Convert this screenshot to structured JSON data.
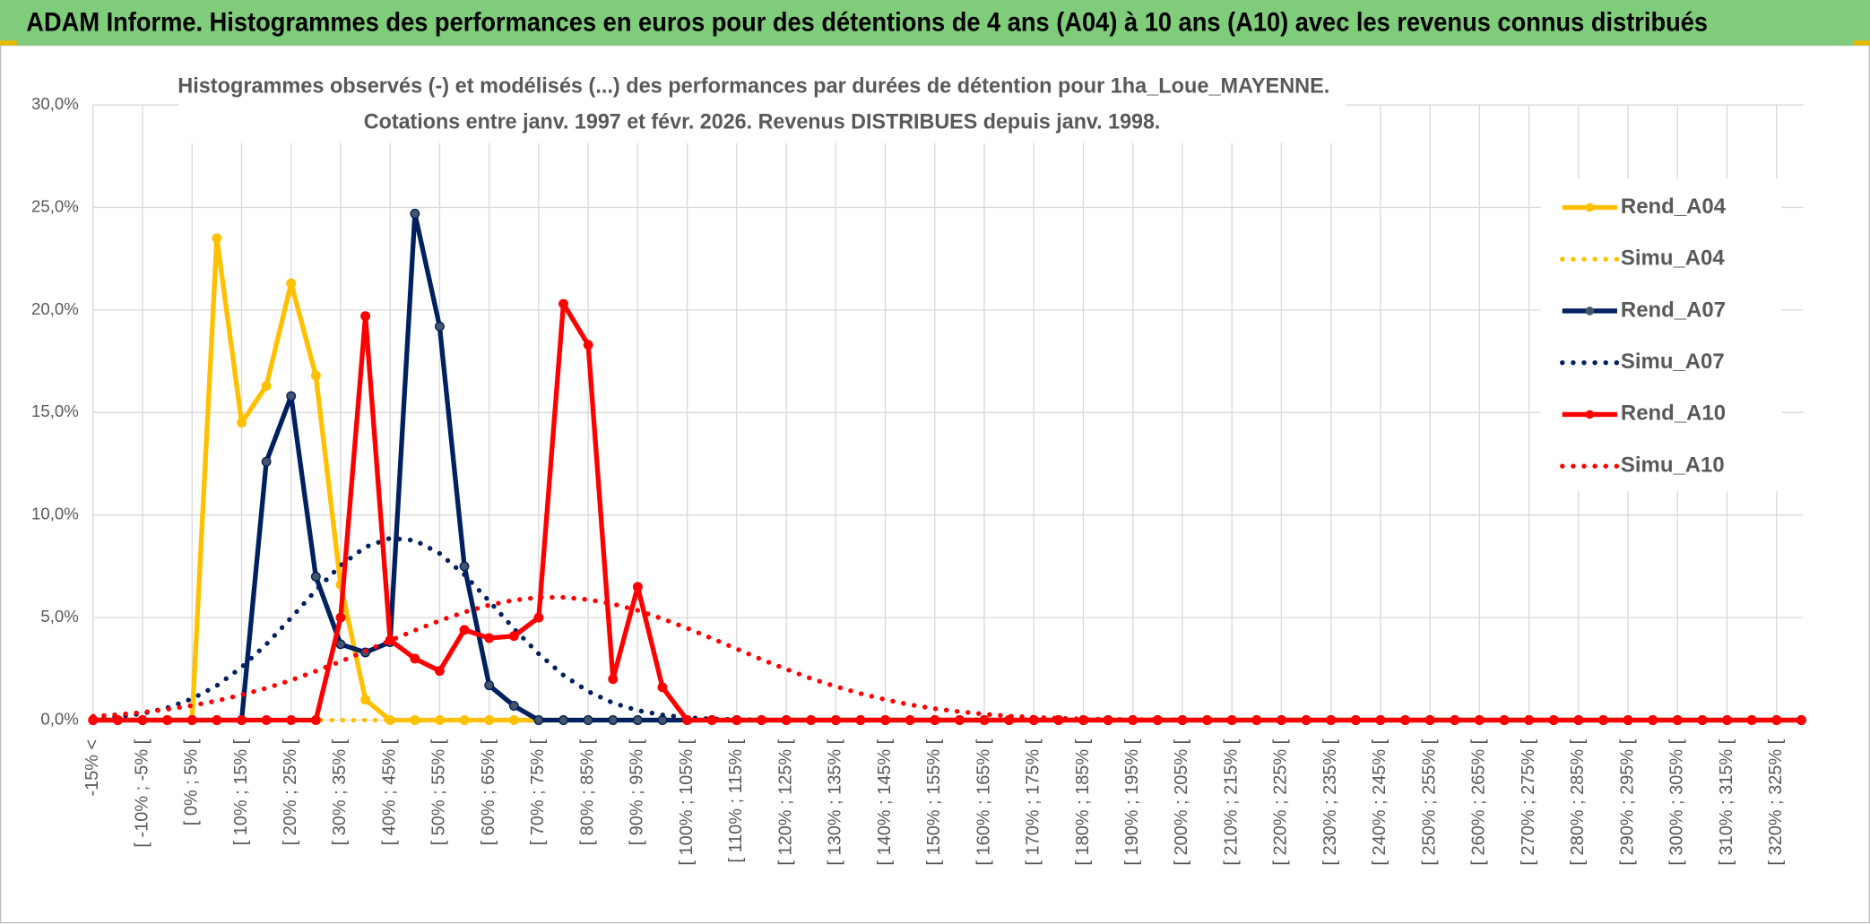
{
  "header": {
    "title": "ADAM Informe. Histogrammes des performances en euros pour des détentions de 4 ans (A04) à 10 ans (A10) avec les revenus connus distribués"
  },
  "chart_data": {
    "type": "line",
    "title": "Histogrammes observés (-) et modélisés (...) des performances par durées de détention pour 1ha_Loue_MAYENNE.",
    "subtitle": "Cotations entre janv. 1997 et févr. 2026. Revenus DISTRIBUES depuis janv. 1998.",
    "categories": [
      "-15% <",
      null,
      "[ -10% ; -5% [",
      null,
      "[ 0% ; 5% [",
      null,
      "[ 10% ; 15% [",
      null,
      "[ 20% ; 25% [",
      null,
      "[ 30% ; 35% [",
      null,
      "[ 40% ; 45% [",
      null,
      "[ 50% ; 55% [",
      null,
      "[ 60% ; 65% [",
      null,
      "[ 70% ; 75% [",
      null,
      "[ 80% ; 85% [",
      null,
      "[ 90% ; 95% [",
      null,
      "[ 100% ; 105% [",
      null,
      "[ 110% ; 115% [",
      null,
      "[ 120% ; 125% [",
      null,
      "[ 130% ; 135% [",
      null,
      "[ 140% ; 145% [",
      null,
      "[ 150% ; 155% [",
      null,
      "[ 160% ; 165% [",
      null,
      "[ 170% ; 175% [",
      null,
      "[ 180% ; 185% [",
      null,
      "[ 190% ; 195% [",
      null,
      "[ 200% ; 205% [",
      null,
      "[ 210% ; 215% [",
      null,
      "[ 220% ; 225% [",
      null,
      "[ 230% ; 235% [",
      null,
      "[ 240% ; 245% [",
      null,
      "[ 250% ; 255% [",
      null,
      "[ 260% ; 265% [",
      null,
      "[ 270% ; 275% [",
      null,
      "[ 280% ; 285% [",
      null,
      "[ 290% ; 295% [",
      null,
      "[ 300% ; 305% [",
      null,
      "[ 310% ; 315% [",
      null,
      "[ 320% ; 325% [",
      null
    ],
    "ylim": [
      0,
      30
    ],
    "yticks": [
      {
        "value": 0,
        "label": "0,0%"
      },
      {
        "value": 5,
        "label": "5,0%"
      },
      {
        "value": 10,
        "label": "10,0%"
      },
      {
        "value": 15,
        "label": "15,0%"
      },
      {
        "value": 20,
        "label": "20,0%"
      },
      {
        "value": 25,
        "label": "25,0%"
      },
      {
        "value": 30,
        "label": "30,0%"
      }
    ],
    "grid": true,
    "legend": "right",
    "series": [
      {
        "name": "Rend_A04",
        "color": "#ffc000",
        "line_style": "solid",
        "markers": true,
        "values": [
          0,
          0,
          0,
          0,
          0,
          23.5,
          14.5,
          16.3,
          21.3,
          16.8,
          6.6,
          1,
          0,
          0,
          0,
          0,
          0,
          0,
          0,
          0,
          0,
          0,
          0,
          0,
          0,
          0,
          0,
          0,
          0,
          0,
          0,
          0,
          0,
          0,
          0,
          0,
          0,
          0,
          0,
          0,
          0,
          0,
          0,
          0,
          0,
          0,
          0,
          0,
          0,
          0,
          0,
          0,
          0,
          0,
          0,
          0,
          0,
          0,
          0,
          0,
          0,
          0,
          0,
          0,
          0,
          0,
          0,
          0,
          0,
          0
        ]
      },
      {
        "name": "Simu_A04",
        "color": "#ffc000",
        "line_style": "dotted",
        "markers": false,
        "values": [
          0,
          0,
          0,
          0,
          0,
          0,
          0,
          0,
          0,
          0,
          0,
          0,
          0,
          0,
          0,
          0,
          0,
          0,
          0,
          0,
          0,
          0,
          0,
          0,
          0,
          0,
          0,
          0,
          0,
          0,
          0,
          0,
          0,
          0,
          0,
          0,
          0,
          0,
          0,
          0,
          0,
          0,
          0,
          0,
          0,
          0,
          0,
          0,
          0,
          0,
          0,
          0,
          0,
          0,
          0,
          0,
          0,
          0,
          0,
          0,
          0,
          0,
          0,
          0,
          0,
          0,
          0,
          0,
          0,
          0
        ]
      },
      {
        "name": "Rend_A07",
        "color": "#002060",
        "line_style": "solid",
        "markers": true,
        "values": [
          0,
          0,
          0,
          0,
          0,
          0,
          0,
          12.6,
          15.8,
          7,
          3.7,
          3.3,
          3.8,
          24.7,
          19.2,
          7.5,
          1.7,
          0.7,
          0,
          0,
          0,
          0,
          0,
          0,
          0,
          0,
          0,
          0,
          0,
          0,
          0,
          0,
          0,
          0,
          0,
          0,
          0,
          0,
          0,
          0,
          0,
          0,
          0,
          0,
          0,
          0,
          0,
          0,
          0,
          0,
          0,
          0,
          0,
          0,
          0,
          0,
          0,
          0,
          0,
          0,
          0,
          0,
          0,
          0,
          0,
          0,
          0,
          0,
          0,
          0
        ]
      },
      {
        "name": "Simu_A07",
        "color": "#002060",
        "line_style": "dotted",
        "markers": false,
        "values": [
          0.08,
          0.16,
          0.32,
          0.6,
          1.04,
          1.68,
          2.58,
          3.7,
          4.99,
          6.33,
          7.54,
          8.44,
          8.87,
          8.76,
          8.13,
          7.09,
          5.8,
          4.46,
          3.23,
          2.19,
          1.4,
          0.84,
          0.47,
          0.25,
          0.12,
          0.06,
          0.03,
          0.01,
          0,
          0,
          0,
          0,
          0,
          0,
          0,
          0,
          0,
          0,
          0,
          0,
          0,
          0,
          0,
          0,
          0,
          0,
          0,
          0,
          0,
          0,
          0,
          0,
          0,
          0,
          0,
          0,
          0,
          0,
          0,
          0,
          0,
          0,
          0,
          0,
          0,
          0,
          0,
          0,
          0,
          0
        ]
      },
      {
        "name": "Rend_A10",
        "color": "#ff0000",
        "line_style": "solid",
        "markers": true,
        "values": [
          0,
          0,
          0,
          0,
          0,
          0,
          0,
          0,
          0,
          0,
          5,
          19.7,
          3.9,
          3,
          2.4,
          4.4,
          4,
          4.1,
          5,
          20.3,
          18.3,
          2,
          6.5,
          1.6,
          0,
          0,
          0,
          0,
          0,
          0,
          0,
          0,
          0,
          0,
          0,
          0,
          0,
          0,
          0,
          0,
          0,
          0,
          0,
          0,
          0,
          0,
          0,
          0,
          0,
          0,
          0,
          0,
          0,
          0,
          0,
          0,
          0,
          0,
          0,
          0,
          0,
          0,
          0,
          0,
          0,
          0,
          0,
          0,
          0,
          0
        ]
      },
      {
        "name": "Simu_A10",
        "color": "#ff0000",
        "line_style": "dotted",
        "markers": false,
        "values": [
          0.19,
          0.27,
          0.38,
          0.53,
          0.71,
          0.94,
          1.23,
          1.56,
          1.95,
          2.39,
          2.86,
          3.37,
          3.88,
          4.38,
          4.85,
          5.27,
          5.61,
          5.85,
          5.98,
          5.99,
          5.88,
          5.66,
          5.35,
          4.94,
          4.48,
          3.98,
          3.47,
          2.96,
          2.48,
          2.03,
          1.64,
          1.29,
          1,
          0.75,
          0.56,
          0.41,
          0.29,
          0.2,
          0.14,
          0.09,
          0.06,
          0.04,
          0.03,
          0.02,
          0.01,
          0,
          0,
          0,
          0,
          0,
          0,
          0,
          0,
          0,
          0,
          0,
          0,
          0,
          0,
          0,
          0,
          0,
          0,
          0,
          0,
          0,
          0,
          0,
          0,
          0
        ]
      }
    ]
  }
}
